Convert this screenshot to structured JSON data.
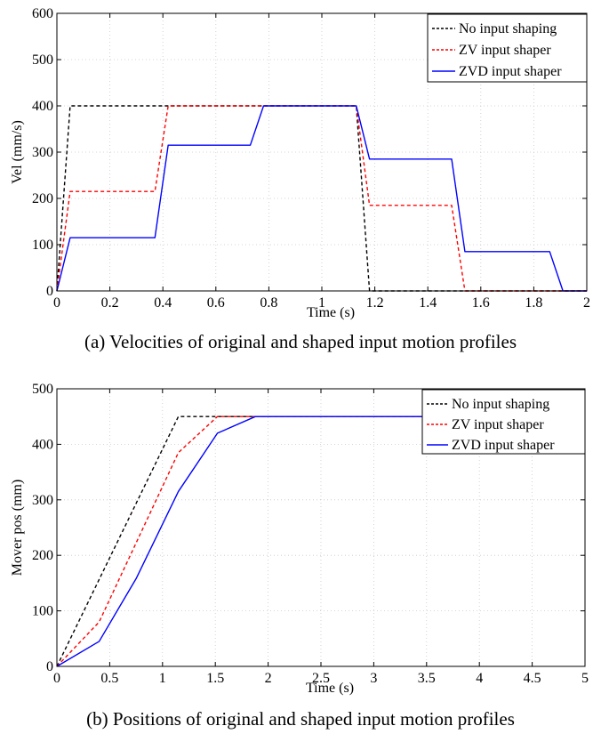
{
  "chart_data": [
    {
      "type": "line",
      "id": "velocity",
      "title": "",
      "xlabel": "Time (s)",
      "ylabel": "Vel (mm/s)",
      "xlim": [
        0,
        2
      ],
      "ylim": [
        0,
        600
      ],
      "xticks": [
        0,
        0.2,
        0.4,
        0.6,
        0.8,
        1,
        1.2,
        1.4,
        1.6,
        1.8,
        2
      ],
      "xtick_labels": [
        "0",
        "0.2",
        "0.4",
        "0.6",
        "0.8",
        "1",
        "1.2",
        "1.4",
        "1.6",
        "1.8",
        "2"
      ],
      "yticks": [
        0,
        100,
        200,
        300,
        400,
        500,
        600
      ],
      "ytick_labels": [
        "0",
        "100",
        "200",
        "300",
        "400",
        "500",
        "600"
      ],
      "grid": true,
      "legend_position": "top-right",
      "caption": "(a) Velocities of original and shaped input motion profiles",
      "series": [
        {
          "name": "No input shaping",
          "color": "#000000",
          "style": "dashed",
          "x": [
            0,
            0.05,
            1.13,
            1.18,
            2.0
          ],
          "y": [
            0,
            400,
            400,
            0,
            0
          ]
        },
        {
          "name": "ZV input shaper",
          "color": "#ff0000",
          "style": "dashed",
          "x": [
            0,
            0.05,
            0.37,
            0.42,
            1.13,
            1.18,
            1.49,
            1.54,
            2.0
          ],
          "y": [
            0,
            215,
            215,
            400,
            400,
            185,
            185,
            0,
            0
          ]
        },
        {
          "name": "ZVD input shaper",
          "color": "#0000ff",
          "style": "solid",
          "x": [
            0,
            0.05,
            0.37,
            0.42,
            0.73,
            0.78,
            1.13,
            1.18,
            1.49,
            1.54,
            1.86,
            1.91,
            2.0
          ],
          "y": [
            0,
            115,
            115,
            315,
            315,
            400,
            400,
            285,
            285,
            85,
            85,
            0,
            0
          ]
        }
      ]
    },
    {
      "type": "line",
      "id": "position",
      "title": "",
      "xlabel": "Time (s)",
      "ylabel": "Mover pos (mm)",
      "xlim": [
        0,
        5
      ],
      "ylim": [
        0,
        500
      ],
      "xticks": [
        0,
        0.5,
        1,
        1.5,
        2,
        2.5,
        3,
        3.5,
        4,
        4.5,
        5
      ],
      "xtick_labels": [
        "0",
        "0.5",
        "1",
        "1.5",
        "2",
        "2.5",
        "3",
        "3.5",
        "4",
        "4.5",
        "5"
      ],
      "yticks": [
        0,
        100,
        200,
        300,
        400,
        500
      ],
      "ytick_labels": [
        "0",
        "100",
        "200",
        "300",
        "400",
        "500"
      ],
      "grid": true,
      "legend_position": "top-right",
      "caption": "(b) Positions of original and shaped input motion profiles",
      "series": [
        {
          "name": "No input shaping",
          "color": "#000000",
          "style": "dashed",
          "x": [
            0,
            1.15,
            5.0
          ],
          "y": [
            0,
            450,
            450
          ]
        },
        {
          "name": "ZV input shaper",
          "color": "#ff0000",
          "style": "dashed",
          "x": [
            0,
            0.4,
            1.15,
            1.52,
            5.0
          ],
          "y": [
            0,
            80,
            385,
            450,
            450
          ]
        },
        {
          "name": "ZVD input shaper",
          "color": "#0000ff",
          "style": "solid",
          "x": [
            0,
            0.4,
            0.75,
            1.15,
            1.52,
            1.88,
            5.0
          ],
          "y": [
            0,
            45,
            158,
            315,
            420,
            450,
            450
          ]
        }
      ]
    }
  ]
}
